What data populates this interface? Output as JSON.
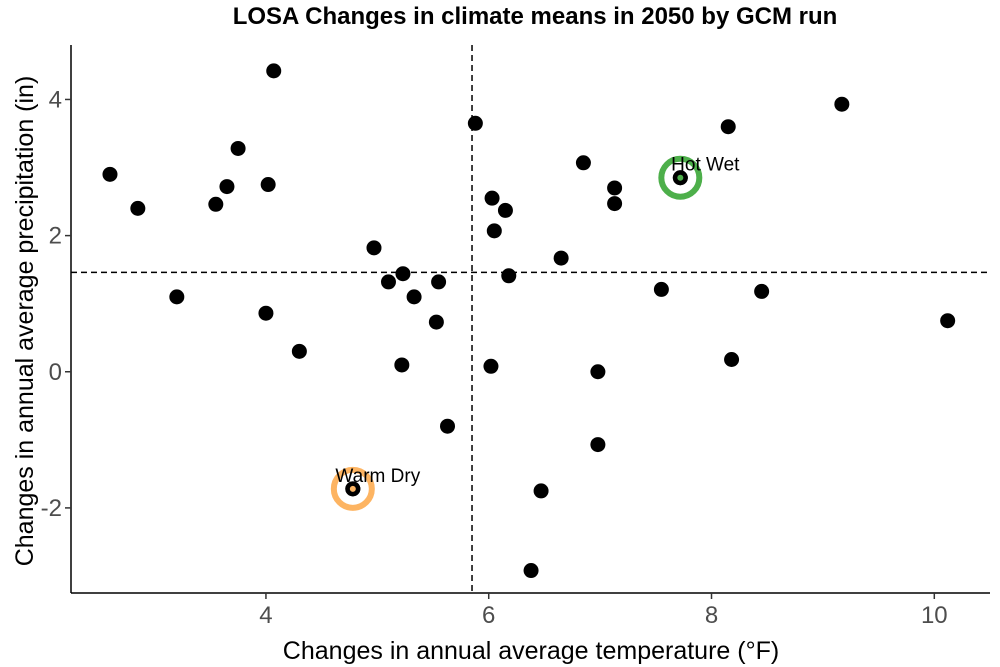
{
  "chart_data": {
    "type": "scatter",
    "title": "LOSA Changes in climate means in 2050 by GCM run",
    "xlabel": "Changes in annual average temperature (°F)",
    "ylabel": "Changes in annual average precipitation (in)",
    "xlim": [
      2.25,
      10.5
    ],
    "ylim": [
      -3.25,
      4.8
    ],
    "xticks": [
      4,
      6,
      8,
      10
    ],
    "yticks": [
      -2,
      0,
      2,
      4
    ],
    "grid": false,
    "reference_lines": {
      "x": 5.85,
      "y": 1.46,
      "style": "dashed",
      "color": "#000000"
    },
    "points": [
      {
        "x": 2.6,
        "y": 2.9
      },
      {
        "x": 2.85,
        "y": 2.4
      },
      {
        "x": 3.2,
        "y": 1.1
      },
      {
        "x": 3.55,
        "y": 2.46
      },
      {
        "x": 3.65,
        "y": 2.72
      },
      {
        "x": 3.75,
        "y": 3.28
      },
      {
        "x": 4.0,
        "y": 0.86
      },
      {
        "x": 4.02,
        "y": 2.75
      },
      {
        "x": 4.07,
        "y": 4.42
      },
      {
        "x": 4.3,
        "y": 0.3
      },
      {
        "x": 4.78,
        "y": -1.72
      },
      {
        "x": 4.97,
        "y": 1.82
      },
      {
        "x": 5.1,
        "y": 1.32
      },
      {
        "x": 5.22,
        "y": 0.1
      },
      {
        "x": 5.23,
        "y": 1.44
      },
      {
        "x": 5.33,
        "y": 1.1
      },
      {
        "x": 5.53,
        "y": 0.73
      },
      {
        "x": 5.55,
        "y": 1.32
      },
      {
        "x": 5.63,
        "y": -0.8
      },
      {
        "x": 5.88,
        "y": 3.65
      },
      {
        "x": 6.02,
        "y": 0.08
      },
      {
        "x": 6.03,
        "y": 2.55
      },
      {
        "x": 6.05,
        "y": 2.07
      },
      {
        "x": 6.15,
        "y": 2.37
      },
      {
        "x": 6.18,
        "y": 1.41
      },
      {
        "x": 6.38,
        "y": -2.92
      },
      {
        "x": 6.47,
        "y": -1.75
      },
      {
        "x": 6.65,
        "y": 1.67
      },
      {
        "x": 6.85,
        "y": 3.07
      },
      {
        "x": 6.98,
        "y": 0.0
      },
      {
        "x": 6.98,
        "y": -1.07
      },
      {
        "x": 7.13,
        "y": 2.7
      },
      {
        "x": 7.13,
        "y": 2.47
      },
      {
        "x": 7.55,
        "y": 1.21
      },
      {
        "x": 7.72,
        "y": 2.85
      },
      {
        "x": 8.15,
        "y": 3.6
      },
      {
        "x": 8.18,
        "y": 0.18
      },
      {
        "x": 8.45,
        "y": 1.18
      },
      {
        "x": 9.17,
        "y": 3.93
      },
      {
        "x": 10.12,
        "y": 0.75
      }
    ],
    "highlights": [
      {
        "label": "Hot Wet",
        "x": 7.72,
        "y": 2.85,
        "color": "#4daf4a"
      },
      {
        "label": "Warm Dry",
        "x": 4.78,
        "y": -1.72,
        "color": "#fdb462"
      }
    ]
  }
}
